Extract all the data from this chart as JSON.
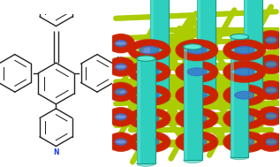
{
  "bg_color": "#ffffff",
  "molecule": {
    "N_color": "#1a3edc",
    "bond_color": "#222222"
  },
  "network": {
    "cylinder_color": "#2ecfbf",
    "cylinder_edge": "#1a9980",
    "helix_outer_color": "#cc2200",
    "helix_inner_color": "#3a6ecc",
    "rod_color": "#aacc00",
    "rod_edge": "#889900"
  }
}
